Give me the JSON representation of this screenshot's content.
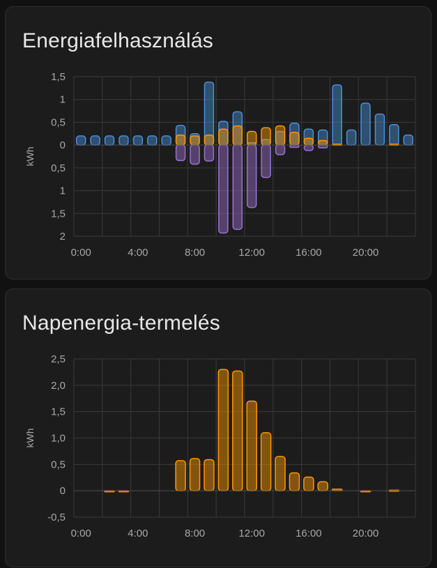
{
  "cards": [
    {
      "title": "Energiafelhasználás",
      "chart_data": {
        "type": "bar",
        "ylabel": "kWh",
        "x_ticks": [
          "0:00",
          "4:00",
          "8:00",
          "12:00",
          "16:00",
          "20:00"
        ],
        "y_ticks_above": [
          "1,5",
          "1",
          "0,5",
          "0"
        ],
        "y_ticks_below": [
          "0,5",
          "1",
          "1,5",
          "2"
        ],
        "ylim": [
          -2,
          1.5
        ],
        "hours": [
          0,
          1,
          2,
          3,
          4,
          5,
          6,
          7,
          8,
          9,
          10,
          11,
          12,
          13,
          14,
          15,
          16,
          17,
          18,
          19,
          20,
          21,
          22,
          23
        ],
        "series": [
          {
            "color": "#4a90d9",
            "values": [
              0.2,
              0.2,
              0.2,
              0.2,
              0.2,
              0.2,
              0.2,
              0.43,
              0.25,
              1.38,
              0.52,
              0.73,
              0.05,
              0.12,
              0.3,
              0.48,
              0.35,
              0.33,
              1.32,
              0.33,
              0.92,
              0.68,
              0.45,
              0.22
            ]
          },
          {
            "color": "#ff9800",
            "values": [
              0,
              0,
              0,
              0,
              0,
              0,
              0,
              0.22,
              0.2,
              0.22,
              0.35,
              0.42,
              0.3,
              0.38,
              0.42,
              0.28,
              0.15,
              0.1,
              0.02,
              0,
              0,
              0,
              0.02,
              0
            ]
          },
          {
            "color": "#9b72cf",
            "values": [
              0,
              0,
              0,
              0,
              0,
              0,
              0,
              -0.34,
              -0.42,
              -0.35,
              -1.93,
              -1.85,
              -1.37,
              -0.71,
              -0.21,
              -0.05,
              -0.12,
              -0.06,
              0,
              0,
              0,
              0,
              0,
              0
            ]
          }
        ]
      }
    },
    {
      "title": "Napenergia-termelés",
      "chart_data": {
        "type": "bar",
        "ylabel": "kWh",
        "x_ticks": [
          "0:00",
          "4:00",
          "8:00",
          "12:00",
          "16:00",
          "20:00"
        ],
        "y_ticks": [
          "2,5",
          "2,0",
          "1,5",
          "1,0",
          "0,5",
          "0",
          "-0,5"
        ],
        "ylim": [
          -0.5,
          2.5
        ],
        "hours": [
          0,
          1,
          2,
          3,
          4,
          5,
          6,
          7,
          8,
          9,
          10,
          11,
          12,
          13,
          14,
          15,
          16,
          17,
          18,
          19,
          20,
          21,
          22,
          23
        ],
        "series": [
          {
            "color": "#ff9800",
            "values": [
              0,
              0,
              -0.01,
              -0.01,
              0,
              0,
              0,
              0.57,
              0.61,
              0.59,
              2.3,
              2.27,
              1.7,
              1.1,
              0.65,
              0.34,
              0.26,
              0.17,
              0.03,
              0,
              -0.02,
              0,
              0.01,
              0
            ]
          }
        ]
      }
    }
  ]
}
